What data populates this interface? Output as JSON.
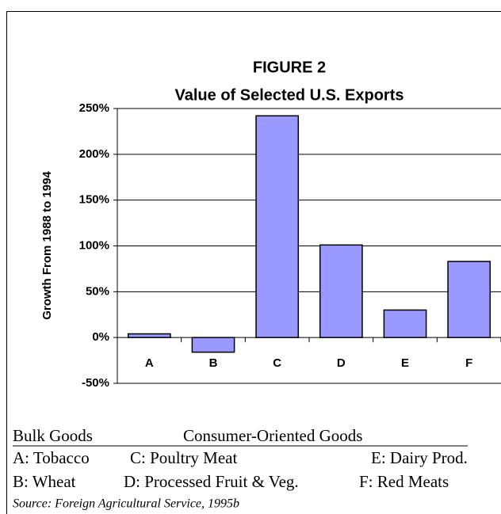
{
  "chart_data": {
    "type": "bar",
    "title": "FIGURE 2",
    "subtitle": "Value of Selected U.S. Exports",
    "ylabel": "Growth From 1988 to 1994",
    "categories": [
      "A",
      "B",
      "C",
      "D",
      "E",
      "F"
    ],
    "values": [
      4,
      -16,
      242,
      101,
      30,
      83
    ],
    "color": "#9999ff",
    "ylim": [
      -50,
      250
    ],
    "yticks": [
      {
        "value": -50,
        "label": "-50%"
      },
      {
        "value": 0,
        "label": "0%"
      },
      {
        "value": 50,
        "label": "50%"
      },
      {
        "value": 100,
        "label": "100%"
      },
      {
        "value": 150,
        "label": "150%"
      },
      {
        "value": 200,
        "label": "200%"
      },
      {
        "value": 250,
        "label": "250%"
      }
    ],
    "grid": true
  },
  "key": {
    "headers": [
      "Bulk Goods",
      "Consumer-Oriented Goods"
    ],
    "rows": [
      [
        "A: Tobacco",
        "C: Poultry Meat",
        "E: Dairy Prod."
      ],
      [
        "B: Wheat",
        "D: Processed Fruit & Veg.",
        "F: Red Meats"
      ]
    ],
    "source": "Source: Foreign Agricultural Service, 1995b"
  }
}
